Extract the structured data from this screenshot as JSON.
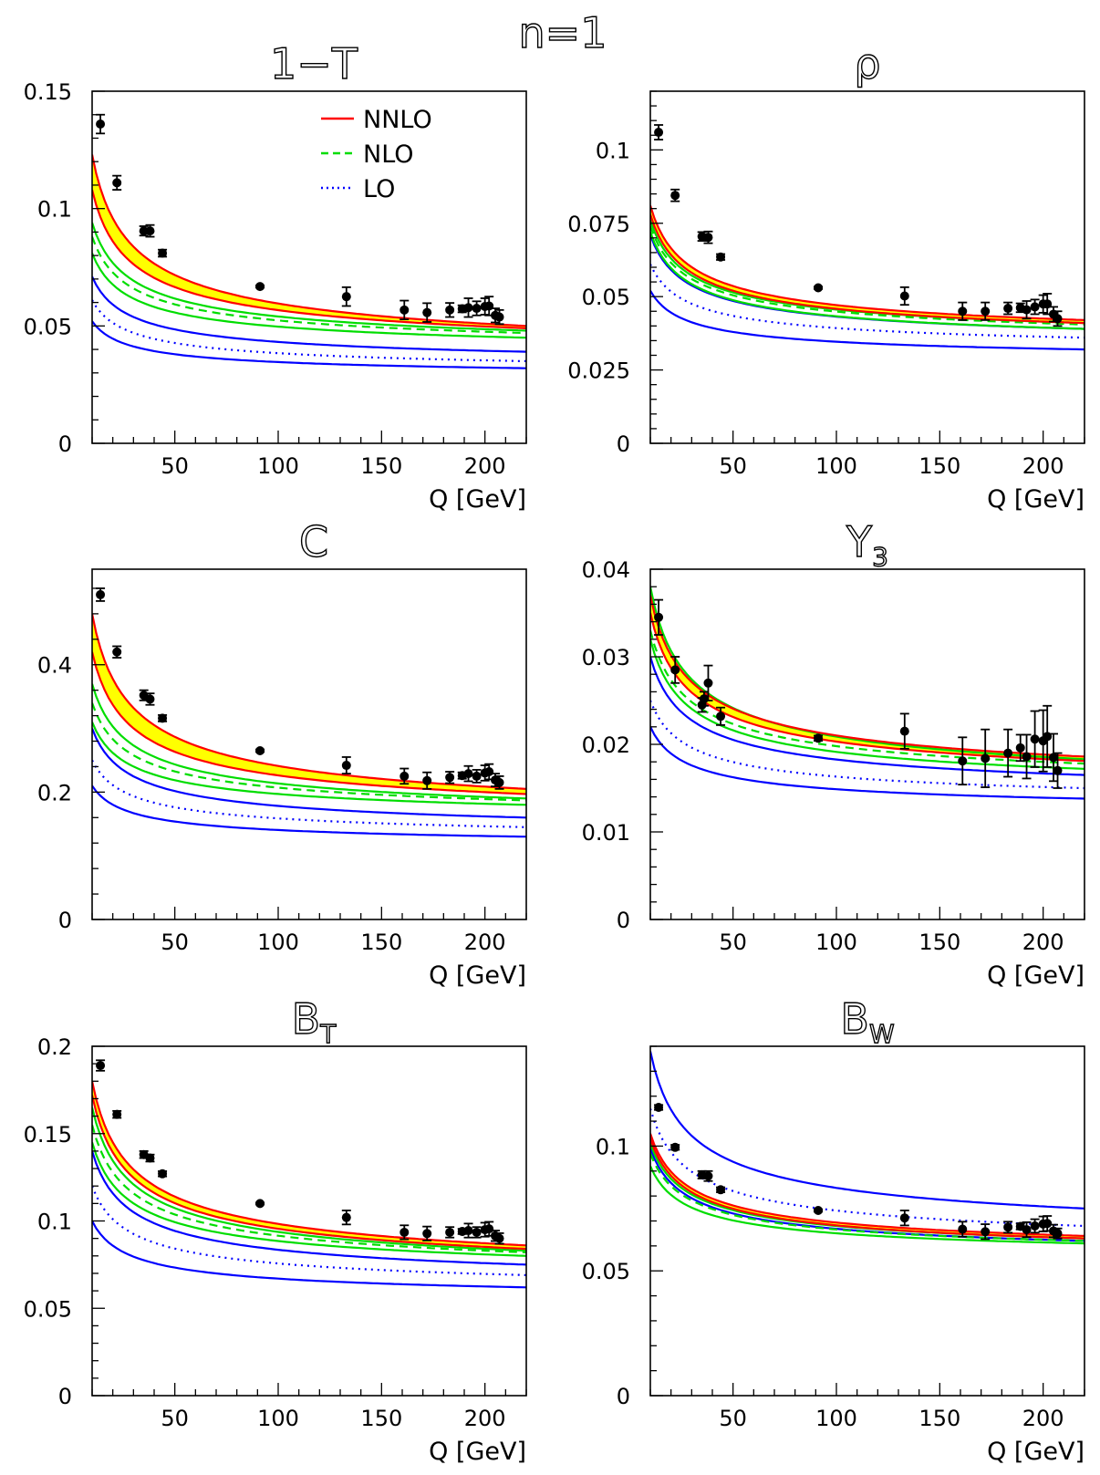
{
  "figure_title": "n=1",
  "legend": [
    {
      "label": "NNLO",
      "color": "#ff0000",
      "style": "solid"
    },
    {
      "label": "NLO",
      "color": "#00dd00",
      "style": "dashed"
    },
    {
      "label": "LO",
      "color": "#0000ff",
      "style": "dotted"
    }
  ],
  "colors": {
    "band_fill": "#ffff00",
    "nnlo": "#ff0000",
    "nlo": "#00dd00",
    "lo": "#0000ff",
    "data": "#000000"
  },
  "chart_data": [
    {
      "id": "1mT",
      "type": "line",
      "title": "1−T",
      "title_sub": "",
      "xlabel": "Q [GeV]",
      "xlim": [
        10,
        220
      ],
      "xticks": [
        50,
        100,
        150,
        200
      ],
      "ylim": [
        0,
        0.15
      ],
      "yticks": [
        0,
        0.05,
        0.1,
        0.15
      ],
      "ytick_labels": [
        "0",
        "0.05",
        "0.1",
        "0.15"
      ],
      "grid": false,
      "legend_position": "top-right",
      "curves": {
        "nnlo_hi": [
          0.123,
          0.05
        ],
        "nnlo_lo": [
          0.108,
          0.049
        ],
        "nlo_hi": [
          0.094,
          0.048
        ],
        "nlo_mid": [
          0.088,
          0.047
        ],
        "nlo_lo": [
          0.081,
          0.045
        ],
        "lo_hi": [
          0.071,
          0.039
        ],
        "lo_mid": [
          0.061,
          0.035
        ],
        "lo_lo": [
          0.052,
          0.032
        ]
      },
      "points": [
        [
          14,
          0.136,
          0.004
        ],
        [
          22,
          0.111,
          0.003
        ],
        [
          35,
          0.0905,
          0.002
        ],
        [
          38,
          0.0905,
          0.0025
        ],
        [
          44,
          0.081,
          0.0015
        ],
        [
          91.2,
          0.0668,
          0.0005
        ],
        [
          133,
          0.0625,
          0.004
        ],
        [
          161,
          0.0568,
          0.004
        ],
        [
          172,
          0.0557,
          0.004
        ],
        [
          183,
          0.0568,
          0.003
        ],
        [
          189,
          0.0573,
          0.0015
        ],
        [
          192,
          0.0578,
          0.004
        ],
        [
          196,
          0.0575,
          0.003
        ],
        [
          200,
          0.0583,
          0.0035
        ],
        [
          202,
          0.0585,
          0.004
        ],
        [
          205,
          0.0545,
          0.003
        ],
        [
          207,
          0.0538,
          0.003
        ]
      ]
    },
    {
      "id": "rho",
      "type": "line",
      "title": "ρ",
      "title_sub": "",
      "xlabel": "Q [GeV]",
      "xlim": [
        10,
        220
      ],
      "xticks": [
        50,
        100,
        150,
        200
      ],
      "ylim": [
        0,
        0.12
      ],
      "yticks": [
        0,
        0.025,
        0.05,
        0.075,
        0.1
      ],
      "ytick_labels": [
        "0",
        "0.025",
        "0.05",
        "0.075",
        "0.1"
      ],
      "grid": false,
      "legend_position": "",
      "curves": {
        "nnlo_hi": [
          0.081,
          0.042
        ],
        "nnlo_lo": [
          0.078,
          0.041
        ],
        "nlo_hi": [
          0.076,
          0.041
        ],
        "nlo_mid": [
          0.074,
          0.0405
        ],
        "nlo_lo": [
          0.072,
          0.039
        ],
        "lo_hi": [
          0.071,
          0.039
        ],
        "lo_mid": [
          0.061,
          0.036
        ],
        "lo_lo": [
          0.052,
          0.032
        ]
      },
      "points": [
        [
          14,
          0.106,
          0.0025
        ],
        [
          22,
          0.0845,
          0.002
        ],
        [
          35,
          0.0705,
          0.0015
        ],
        [
          38,
          0.0702,
          0.002
        ],
        [
          44,
          0.0635,
          0.001
        ],
        [
          91.2,
          0.053,
          0.0004
        ],
        [
          133,
          0.0502,
          0.003
        ],
        [
          161,
          0.045,
          0.003
        ],
        [
          172,
          0.045,
          0.003
        ],
        [
          183,
          0.046,
          0.002
        ],
        [
          189,
          0.0462,
          0.0015
        ],
        [
          192,
          0.0455,
          0.003
        ],
        [
          196,
          0.0465,
          0.0025
        ],
        [
          200,
          0.0475,
          0.003
        ],
        [
          202,
          0.0475,
          0.0035
        ],
        [
          205,
          0.044,
          0.0025
        ],
        [
          207,
          0.0425,
          0.0025
        ]
      ]
    },
    {
      "id": "C",
      "type": "line",
      "title": "C",
      "title_sub": "",
      "xlabel": "Q [GeV]",
      "xlim": [
        10,
        220
      ],
      "xticks": [
        50,
        100,
        150,
        200
      ],
      "ylim": [
        0,
        0.55
      ],
      "yticks": [
        0,
        0.2,
        0.4
      ],
      "ytick_labels": [
        "0",
        "0.2",
        "0.4"
      ],
      "grid": false,
      "legend_position": "",
      "curves": {
        "nnlo_hi": [
          0.48,
          0.205
        ],
        "nnlo_lo": [
          0.42,
          0.197
        ],
        "nlo_hi": [
          0.37,
          0.19
        ],
        "nlo_mid": [
          0.34,
          0.187
        ],
        "nlo_lo": [
          0.31,
          0.18
        ],
        "lo_hi": [
          0.3,
          0.16
        ],
        "lo_mid": [
          0.25,
          0.145
        ],
        "lo_lo": [
          0.21,
          0.13
        ]
      },
      "points": [
        [
          14,
          0.51,
          0.01
        ],
        [
          22,
          0.42,
          0.009
        ],
        [
          35,
          0.352,
          0.008
        ],
        [
          38,
          0.346,
          0.009
        ],
        [
          44,
          0.316,
          0.005
        ],
        [
          91.2,
          0.265,
          0.002
        ],
        [
          133,
          0.242,
          0.013
        ],
        [
          161,
          0.225,
          0.012
        ],
        [
          172,
          0.218,
          0.013
        ],
        [
          183,
          0.223,
          0.009
        ],
        [
          189,
          0.226,
          0.005
        ],
        [
          192,
          0.229,
          0.012
        ],
        [
          196,
          0.225,
          0.01
        ],
        [
          200,
          0.23,
          0.012
        ],
        [
          202,
          0.232,
          0.012
        ],
        [
          205,
          0.219,
          0.01
        ],
        [
          207,
          0.215,
          0.01
        ]
      ]
    },
    {
      "id": "y3",
      "type": "line",
      "title": "Y",
      "title_sub": "3",
      "xlabel": "Q [GeV]",
      "xlim": [
        10,
        220
      ],
      "xticks": [
        50,
        100,
        150,
        200
      ],
      "ylim": [
        0,
        0.04
      ],
      "yticks": [
        0,
        0.01,
        0.02,
        0.03,
        0.04
      ],
      "ytick_labels": [
        "0",
        "0.01",
        "0.02",
        "0.03",
        "0.04"
      ],
      "grid": false,
      "legend_position": "",
      "curves": {
        "nnlo_hi": [
          0.037,
          0.0186
        ],
        "nnlo_lo": [
          0.035,
          0.0181
        ],
        "nlo_hi": [
          0.038,
          0.0183
        ],
        "nlo_mid": [
          0.033,
          0.0178
        ],
        "nlo_lo": [
          0.032,
          0.0172
        ],
        "lo_hi": [
          0.03,
          0.0165
        ],
        "lo_mid": [
          0.025,
          0.015
        ],
        "lo_lo": [
          0.022,
          0.0138
        ]
      },
      "points": [
        [
          14,
          0.0345,
          0.002
        ],
        [
          22,
          0.0285,
          0.0015
        ],
        [
          35,
          0.0245,
          0.0008
        ],
        [
          36,
          0.0252,
          0.0008
        ],
        [
          38,
          0.027,
          0.002
        ],
        [
          44,
          0.0232,
          0.001
        ],
        [
          91.2,
          0.0207,
          0.0003
        ],
        [
          133,
          0.0215,
          0.002
        ],
        [
          161,
          0.0181,
          0.0027
        ],
        [
          172,
          0.0184,
          0.0033
        ],
        [
          183,
          0.019,
          0.0027
        ],
        [
          189,
          0.0196,
          0.0015
        ],
        [
          192,
          0.0186,
          0.0025
        ],
        [
          196,
          0.0206,
          0.0032
        ],
        [
          200,
          0.0204,
          0.0035
        ],
        [
          202,
          0.0209,
          0.0035
        ],
        [
          205,
          0.0185,
          0.0027
        ],
        [
          207,
          0.017,
          0.002
        ]
      ]
    },
    {
      "id": "BT",
      "type": "line",
      "title": "B",
      "title_sub": "T",
      "xlabel": "Q [GeV]",
      "xlim": [
        10,
        220
      ],
      "xticks": [
        50,
        100,
        150,
        200
      ],
      "ylim": [
        0,
        0.2
      ],
      "yticks": [
        0,
        0.05,
        0.1,
        0.15,
        0.2
      ],
      "ytick_labels": [
        "0",
        "0.05",
        "0.1",
        "0.15",
        "0.2"
      ],
      "grid": false,
      "legend_position": "",
      "curves": {
        "nnlo_hi": [
          0.18,
          0.086
        ],
        "nnlo_lo": [
          0.172,
          0.084
        ],
        "nlo_hi": [
          0.165,
          0.083
        ],
        "nlo_mid": [
          0.155,
          0.082
        ],
        "nlo_lo": [
          0.145,
          0.08
        ],
        "lo_hi": [
          0.14,
          0.075
        ],
        "lo_mid": [
          0.12,
          0.069
        ],
        "lo_lo": [
          0.1,
          0.062
        ]
      },
      "points": [
        [
          14,
          0.189,
          0.003
        ],
        [
          22,
          0.161,
          0.002
        ],
        [
          35,
          0.138,
          0.002
        ],
        [
          38,
          0.136,
          0.002
        ],
        [
          44,
          0.127,
          0.0015
        ],
        [
          91.2,
          0.11,
          0.0005
        ],
        [
          133,
          0.102,
          0.004
        ],
        [
          161,
          0.0935,
          0.004
        ],
        [
          172,
          0.0928,
          0.004
        ],
        [
          183,
          0.0935,
          0.003
        ],
        [
          189,
          0.094,
          0.0015
        ],
        [
          192,
          0.0945,
          0.004
        ],
        [
          196,
          0.0935,
          0.003
        ],
        [
          200,
          0.095,
          0.004
        ],
        [
          202,
          0.0955,
          0.004
        ],
        [
          205,
          0.0915,
          0.003
        ],
        [
          207,
          0.09,
          0.003
        ]
      ]
    },
    {
      "id": "BW",
      "type": "line",
      "title": "B",
      "title_sub": "W",
      "xlabel": "Q [GeV]",
      "xlim": [
        10,
        220
      ],
      "xticks": [
        50,
        100,
        150,
        200
      ],
      "ylim": [
        0,
        0.14
      ],
      "yticks": [
        0,
        0.05,
        0.1
      ],
      "ytick_labels": [
        "0",
        "0.05",
        "0.1"
      ],
      "grid": false,
      "legend_position": "",
      "curves": {
        "nnlo_hi": [
          0.105,
          0.064
        ],
        "nnlo_lo": [
          0.103,
          0.063
        ],
        "nlo_hi": [
          0.101,
          0.063
        ],
        "nlo_mid": [
          0.097,
          0.062
        ],
        "nlo_lo": [
          0.092,
          0.061
        ],
        "lo_hi": [
          0.138,
          0.075
        ],
        "lo_mid": [
          0.115,
          0.068
        ],
        "lo_lo": [
          0.099,
          0.062
        ]
      },
      "points": [
        [
          14,
          0.1155,
          0.001
        ],
        [
          22,
          0.0995,
          0.001
        ],
        [
          35,
          0.0885,
          0.0015
        ],
        [
          38,
          0.088,
          0.002
        ],
        [
          44,
          0.0825,
          0.001
        ],
        [
          91.2,
          0.0742,
          0.0005
        ],
        [
          133,
          0.0712,
          0.003
        ],
        [
          161,
          0.0667,
          0.003
        ],
        [
          172,
          0.0657,
          0.003
        ],
        [
          183,
          0.0675,
          0.0022
        ],
        [
          189,
          0.0678,
          0.0012
        ],
        [
          192,
          0.0665,
          0.003
        ],
        [
          196,
          0.068,
          0.0027
        ],
        [
          200,
          0.0688,
          0.003
        ],
        [
          202,
          0.069,
          0.003
        ],
        [
          205,
          0.066,
          0.0025
        ],
        [
          207,
          0.065,
          0.002
        ]
      ]
    }
  ]
}
